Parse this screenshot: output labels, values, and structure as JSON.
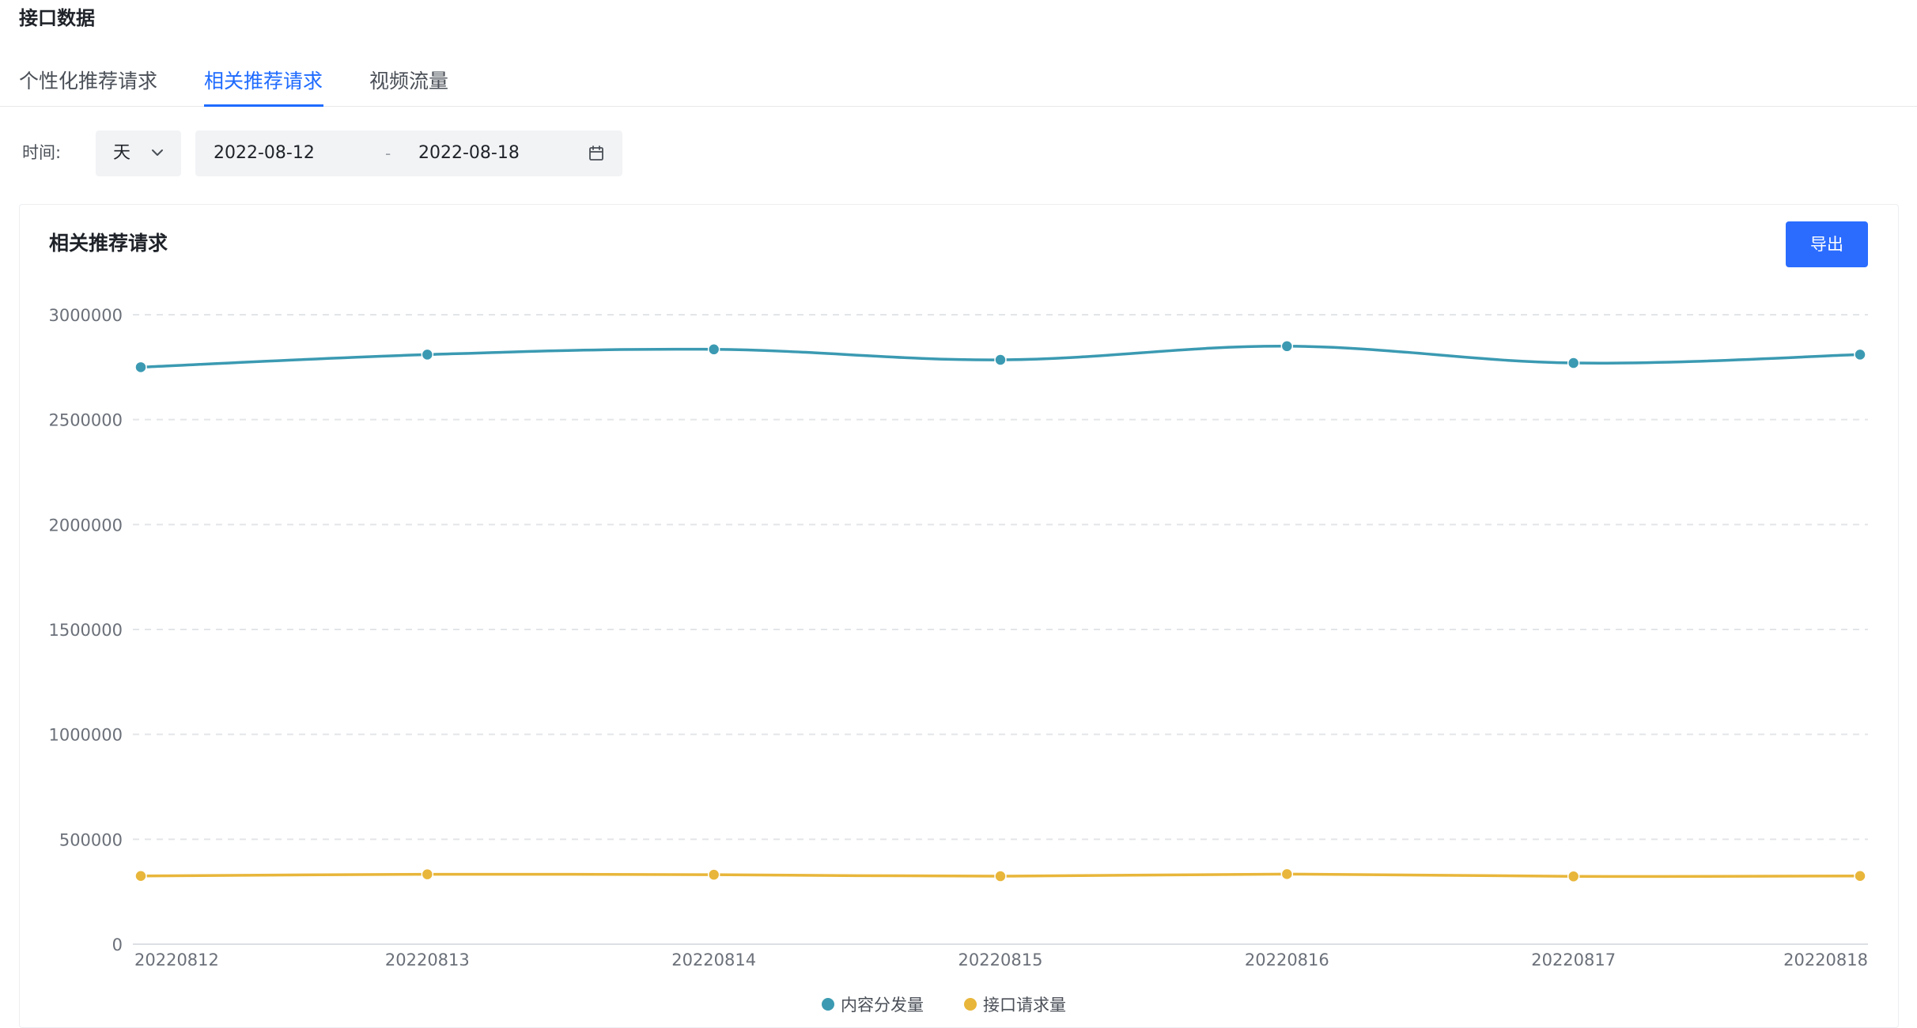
{
  "header": {
    "title": "接口数据"
  },
  "tabs": [
    {
      "label": "个性化推荐请求",
      "active": false
    },
    {
      "label": "相关推荐请求",
      "active": true
    },
    {
      "label": "视频流量",
      "active": false
    }
  ],
  "filters": {
    "time_label": "时间:",
    "granularity": "天",
    "start_date": "2022-08-12",
    "separator": "-",
    "end_date": "2022-08-18"
  },
  "card": {
    "title": "相关推荐请求",
    "export_label": "导出"
  },
  "colors": {
    "accent": "#1f6bff",
    "button": "#2b6cff",
    "series_content": "#3b9ab2",
    "series_requests": "#e8b63a"
  },
  "chart_data": {
    "type": "line",
    "categories": [
      "20220812",
      "20220813",
      "20220814",
      "20220815",
      "20220816",
      "20220817",
      "20220818"
    ],
    "series": [
      {
        "name": "内容分发量",
        "color": "#3b9ab2",
        "values": [
          2750000,
          2810000,
          2835000,
          2785000,
          2850000,
          2770000,
          2810000
        ]
      },
      {
        "name": "接口请求量",
        "color": "#e8b63a",
        "values": [
          325000,
          333000,
          331000,
          324000,
          334000,
          323000,
          325000
        ]
      }
    ],
    "yticks": [
      "3000000",
      "2500000",
      "2000000",
      "1500000",
      "1000000",
      "500000",
      "0"
    ],
    "ylim": [
      0,
      3000000
    ],
    "grid": true,
    "smooth": true,
    "legend_position": "bottom-center"
  }
}
